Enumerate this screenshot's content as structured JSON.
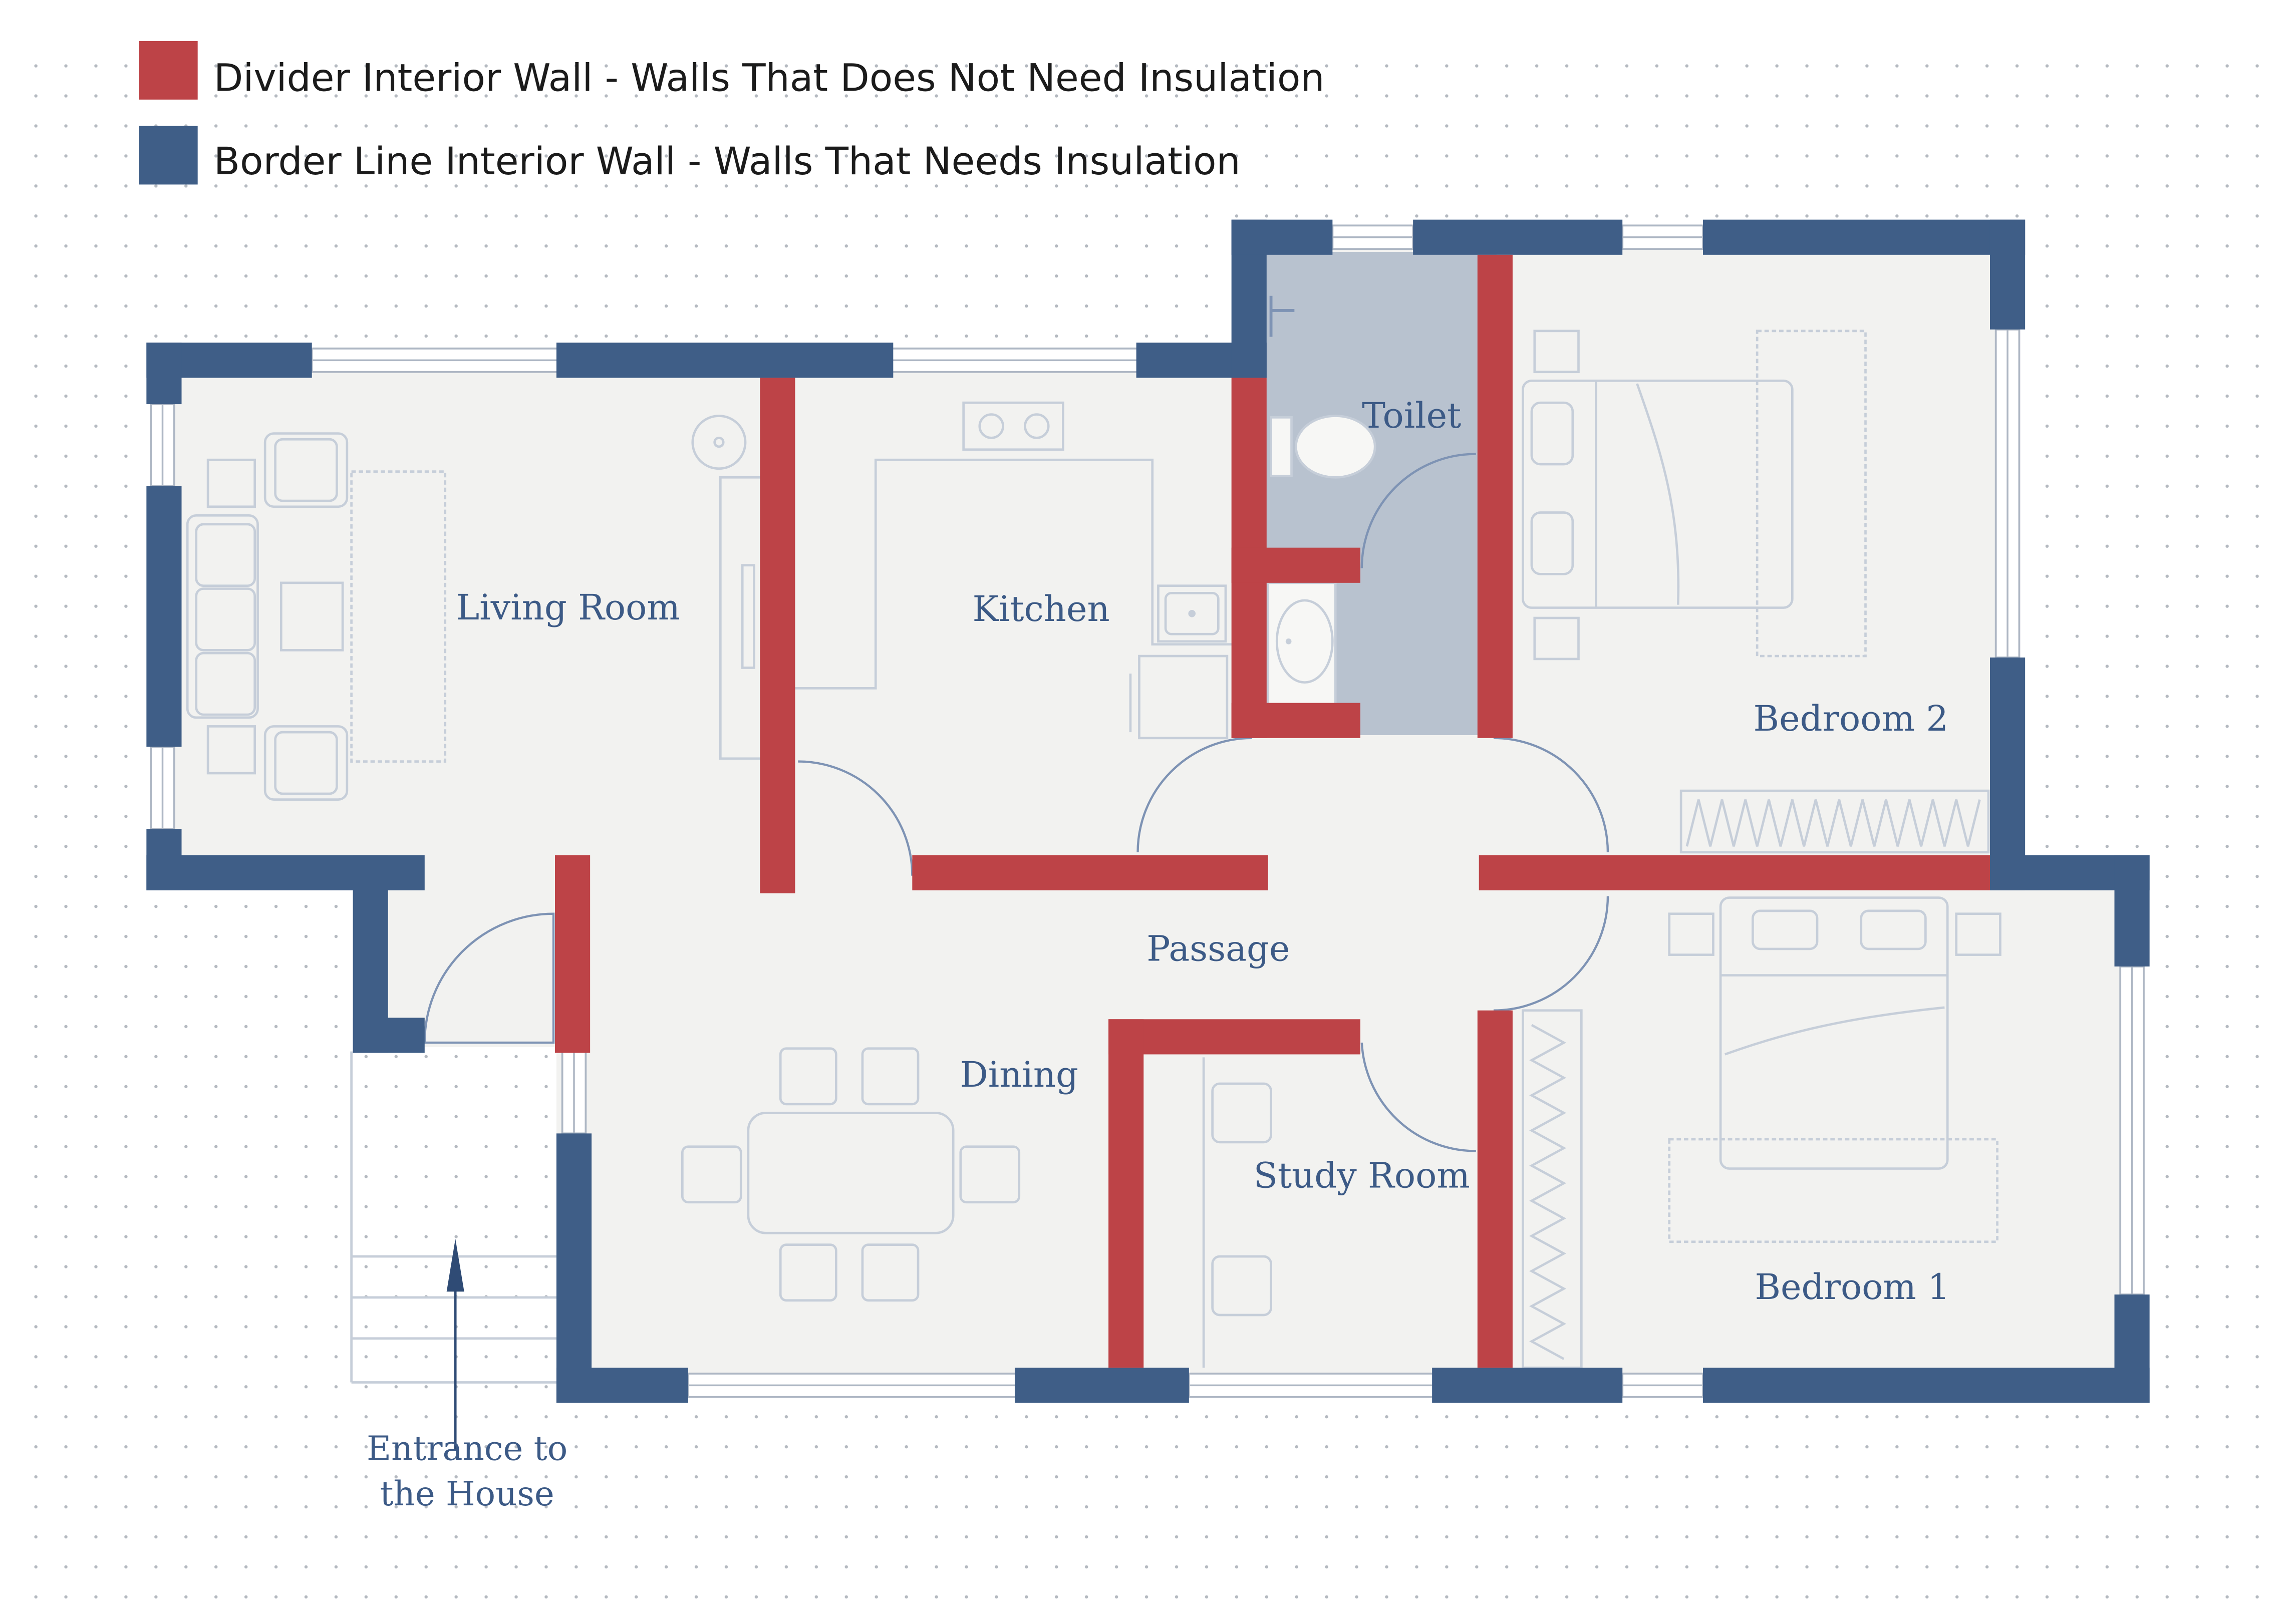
{
  "legend": {
    "items": [
      {
        "label": "Divider Interior Wall - Walls That Does Not Need Insulation",
        "color": "#bd4347",
        "meaning": "divider"
      },
      {
        "label": "Border Line Interior Wall - Walls That Needs Insulation",
        "color": "#3f5e87",
        "meaning": "border"
      }
    ]
  },
  "rooms": {
    "living_room": "Living Room",
    "kitchen": "Kitchen",
    "toilet": "Toilet",
    "bedroom_2": "Bedroom 2",
    "passage": "Passage",
    "dining": "Dining",
    "study_room": "Study Room",
    "bedroom_1": "Bedroom 1"
  },
  "entrance": {
    "line1": "Entrance to",
    "line2": "the House"
  },
  "colors": {
    "border_wall": "#3f5e87",
    "divider_wall": "#bd4347",
    "floor": "#f2f2f0",
    "toilet_floor": "#b8c2cf",
    "label_text": "#3c5a86"
  }
}
